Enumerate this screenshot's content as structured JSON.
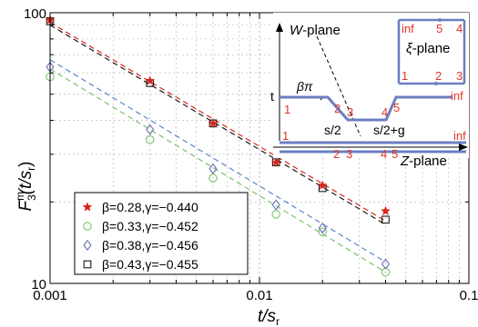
{
  "chart_data": {
    "type": "scatter",
    "x_scale": "log",
    "y_scale": "log",
    "xlim": [
      0.001,
      0.1
    ],
    "ylim": [
      10,
      100
    ],
    "x_ticks": [
      {
        "value": 0.001,
        "label": "0.001"
      },
      {
        "value": 0.01,
        "label": "0.01"
      },
      {
        "value": 0.1,
        "label": "0.1"
      }
    ],
    "y_ticks": [
      {
        "value": 10,
        "label": "10"
      },
      {
        "value": 100,
        "label": "100"
      }
    ],
    "xlabel": {
      "main": "t/s",
      "sub": "r"
    },
    "ylabel": {
      "main": "F",
      "sup": "m",
      "sub": "3",
      "rest": "(t/s",
      "sub2": "r",
      "close": ")"
    },
    "grid": true,
    "legend_position": "lower-left",
    "series": [
      {
        "name": "β=0.28,γ=−0.440",
        "marker": "star",
        "color": "#d9261c",
        "fit_color": "#d9261c",
        "x": [
          0.001,
          0.003,
          0.006,
          0.012,
          0.02,
          0.04
        ],
        "y": [
          94,
          56,
          39,
          28,
          23,
          18.5
        ],
        "fit": [
          [
            0.001,
            92
          ],
          [
            0.04,
            17
          ]
        ]
      },
      {
        "name": "β=0.33,γ=−0.452",
        "marker": "circle",
        "color": "#7cc26c",
        "fit_color": "#7cc26c",
        "x": [
          0.001,
          0.003,
          0.006,
          0.012,
          0.02,
          0.04
        ],
        "y": [
          58,
          34,
          24.5,
          18,
          15.5,
          11
        ],
        "fit": [
          [
            0.001,
            62
          ],
          [
            0.04,
            11
          ]
        ]
      },
      {
        "name": "β=0.38,γ=−0.456",
        "marker": "diamond",
        "color": "#6a6fb8",
        "fit_color": "#5b86c8",
        "x": [
          0.001,
          0.003,
          0.006,
          0.012,
          0.02,
          0.04
        ],
        "y": [
          63,
          37,
          26.5,
          19.5,
          16,
          11.8
        ],
        "fit": [
          [
            0.001,
            67
          ],
          [
            0.04,
            12
          ]
        ]
      },
      {
        "name": "β=0.43,γ=−0.455",
        "marker": "square",
        "color": "#1a1a1a",
        "fit_color": "#1a1a1a",
        "x": [
          0.001,
          0.003,
          0.006,
          0.012,
          0.02,
          0.04
        ],
        "y": [
          93,
          55,
          39,
          28,
          22.5,
          17.2
        ],
        "fit": [
          [
            0.001,
            90
          ],
          [
            0.04,
            16.5
          ]
        ]
      }
    ]
  },
  "inset_w": {
    "title": "W-plane",
    "angle": "βπ",
    "t_label": "t",
    "s_half": "s/2",
    "s_half_g": "s/2+g",
    "inf": "inf",
    "points": [
      "1",
      "2",
      "3",
      "4",
      "5"
    ]
  },
  "inset_xi": {
    "title": "ξ-plane",
    "inf": "inf",
    "top_points": [
      "5",
      "4"
    ],
    "bottom_points": [
      "1",
      "2",
      "3"
    ]
  },
  "inset_z": {
    "title": "Z-plane",
    "inf": "inf",
    "points": [
      "1",
      "2",
      "3",
      "4",
      "5"
    ]
  },
  "colors": {
    "axis": "#000000",
    "grid": "#b0b0b0",
    "inset_line": "#6b7fc0",
    "inset_label": "#e0332a"
  }
}
